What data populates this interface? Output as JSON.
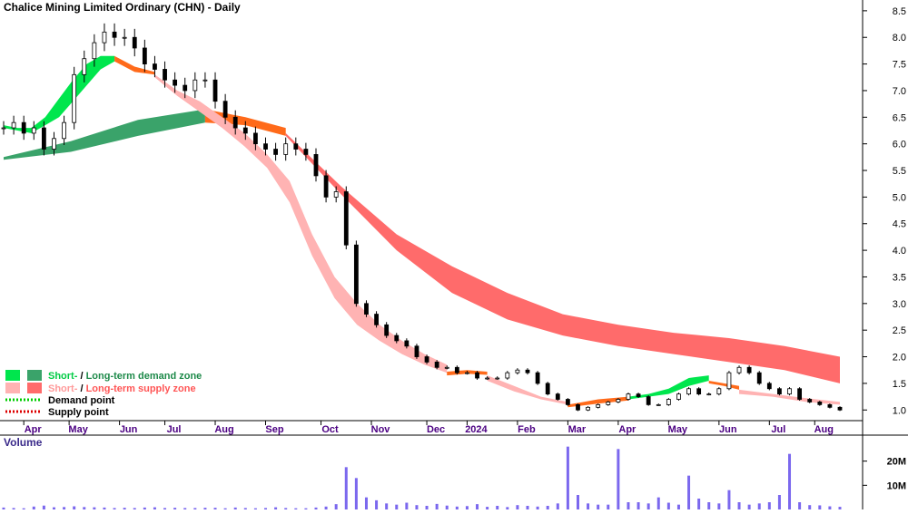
{
  "chart_data": {
    "type": "candlestick",
    "title": "Chalice Mining Limited Ordinary (CHN) - Daily",
    "price_axis": {
      "ticks": [
        "8.5",
        "8.0",
        "7.5",
        "7.0",
        "6.5",
        "6.0",
        "5.5",
        "5.0",
        "4.5",
        "4.0",
        "3.5",
        "3.0",
        "2.5",
        "2.0",
        "1.5",
        "1.0"
      ],
      "range": [
        0.8,
        8.6
      ]
    },
    "volume_axis": {
      "title": "Volume",
      "ticks": [
        "20M",
        "10M"
      ],
      "range": [
        0,
        30000000
      ]
    },
    "month_labels": [
      "Apr",
      "May",
      "Jun",
      "Jul",
      "Aug",
      "Sep",
      "Oct",
      "Nov",
      "Dec",
      "2024",
      "Feb",
      "Mar",
      "Apr",
      "May",
      "Jun",
      "Jul",
      "Aug"
    ],
    "month_index": [
      2,
      6.5,
      11.5,
      16,
      21,
      26,
      31.5,
      36.5,
      42,
      46,
      51,
      56,
      61,
      66,
      71,
      76,
      80.5
    ],
    "legend": {
      "items": [
        {
          "a": "Short-",
          "sep": " / ",
          "b": "Long-term demand zone",
          "colorA": "#00e64d",
          "colorB": "#3aa36a",
          "textColorA": "#00cc44",
          "textColorB": "#1e8a4a"
        },
        {
          "a": "Short-",
          "sep": " / ",
          "b": "Long-term supply zone",
          "colorA": "#ffb3b3",
          "colorB": "#ff6b6b",
          "textColorA": "#ff9a9a",
          "textColorB": "#ff5555"
        },
        {
          "label": "Demand point",
          "color": "#00cc00"
        },
        {
          "label": "Supply point",
          "color": "#dd0000"
        }
      ]
    },
    "colors": {
      "demand_short": "#00e64d",
      "demand_long": "#3aa36a",
      "supply_short": "#ffb3b3",
      "supply_long": "#ff6b6b",
      "transition": "#ff6a1a",
      "candle": "#000000",
      "volume": "#7b68ee",
      "month_label": "#4b0082",
      "volume_label": "#3a2a8a"
    },
    "series": {
      "close": [
        6.3,
        6.4,
        6.2,
        6.3,
        5.9,
        6.1,
        6.4,
        7.3,
        7.6,
        7.9,
        8.1,
        8.0,
        8.0,
        7.8,
        7.5,
        7.4,
        7.2,
        7.1,
        7.0,
        7.2,
        7.2,
        6.8,
        6.5,
        6.3,
        6.2,
        6.0,
        5.9,
        5.8,
        6.0,
        5.9,
        5.8,
        5.4,
        5.0,
        5.1,
        4.1,
        3.0,
        2.8,
        2.6,
        2.4,
        2.3,
        2.2,
        2.0,
        1.9,
        1.8,
        1.8,
        1.7,
        1.7,
        1.6,
        1.6,
        1.6,
        1.7,
        1.75,
        1.7,
        1.5,
        1.3,
        1.2,
        1.1,
        1.0,
        1.05,
        1.1,
        1.15,
        1.2,
        1.3,
        1.25,
        1.1,
        1.1,
        1.2,
        1.3,
        1.4,
        1.3,
        1.3,
        1.4,
        1.7,
        1.8,
        1.7,
        1.5,
        1.4,
        1.3,
        1.4,
        1.2,
        1.15,
        1.1,
        1.05,
        1.0
      ],
      "short_demand": [
        [
          6.35,
          6.3
        ],
        [
          6.3,
          6.25
        ],
        [
          6.3,
          6.2
        ],
        [
          6.5,
          6.35
        ],
        [
          6.85,
          6.5
        ],
        [
          7.2,
          6.8
        ],
        [
          7.5,
          7.1
        ],
        [
          7.65,
          7.4
        ],
        [
          7.65,
          7.55
        ]
      ],
      "short_trans_1": [
        [
          7.65,
          7.55
        ],
        [
          7.45,
          7.35
        ],
        [
          7.35,
          7.3
        ]
      ],
      "short_supply_1": [
        [
          7.3,
          7.25
        ],
        [
          7.0,
          6.9
        ],
        [
          6.8,
          6.6
        ],
        [
          6.5,
          6.3
        ],
        [
          6.2,
          5.95
        ],
        [
          5.8,
          5.55
        ],
        [
          5.3,
          4.9
        ],
        [
          4.3,
          3.9
        ],
        [
          3.5,
          3.1
        ],
        [
          3.0,
          2.6
        ],
        [
          2.6,
          2.3
        ],
        [
          2.3,
          2.05
        ],
        [
          2.05,
          1.85
        ],
        [
          1.85,
          1.7
        ]
      ],
      "short_trans_2": [
        [
          1.72,
          1.65
        ],
        [
          1.75,
          1.68
        ],
        [
          1.72,
          1.66
        ]
      ],
      "short_supply_2": [
        [
          1.65,
          1.55
        ],
        [
          1.45,
          1.35
        ],
        [
          1.25,
          1.2
        ],
        [
          1.15,
          1.1
        ]
      ],
      "short_trans_3": [
        [
          1.1,
          1.05
        ],
        [
          1.2,
          1.12
        ],
        [
          1.25,
          1.18
        ]
      ],
      "short_demand_2": [
        [
          1.25,
          1.2
        ],
        [
          1.3,
          1.25
        ],
        [
          1.4,
          1.3
        ],
        [
          1.6,
          1.45
        ],
        [
          1.65,
          1.55
        ]
      ],
      "short_trans_4": [
        [
          1.55,
          1.5
        ],
        [
          1.5,
          1.45
        ],
        [
          1.45,
          1.38
        ]
      ],
      "short_supply_3": [
        [
          1.38,
          1.3
        ],
        [
          1.3,
          1.25
        ],
        [
          1.22,
          1.15
        ],
        [
          1.15,
          1.1
        ]
      ],
      "long_demand": [
        [
          5.75,
          5.7
        ],
        [
          6.05,
          5.85
        ],
        [
          6.45,
          6.15
        ],
        [
          6.65,
          6.4
        ]
      ],
      "long_trans": [
        [
          6.65,
          6.4
        ],
        [
          6.5,
          6.35
        ],
        [
          6.3,
          6.15
        ]
      ],
      "long_supply": [
        [
          6.2,
          6.15
        ],
        [
          5.2,
          5.05
        ],
        [
          4.3,
          4.0
        ],
        [
          3.7,
          3.2
        ],
        [
          3.2,
          2.7
        ],
        [
          2.8,
          2.4
        ],
        [
          2.6,
          2.2
        ],
        [
          2.45,
          2.05
        ],
        [
          2.35,
          1.9
        ],
        [
          2.2,
          1.75
        ],
        [
          2.0,
          1.5
        ]
      ],
      "volume": [
        0.8,
        0.6,
        0.5,
        1.2,
        1.6,
        0.9,
        1.0,
        1.3,
        1.0,
        0.9,
        0.8,
        0.6,
        0.7,
        0.6,
        0.8,
        0.9,
        0.6,
        0.7,
        0.6,
        0.6,
        0.7,
        0.7,
        0.5,
        0.8,
        0.6,
        0.5,
        0.6,
        0.9,
        0.6,
        0.5,
        0.5,
        0.8,
        1.2,
        2.2,
        17.5,
        13.0,
        5.0,
        3.8,
        2.5,
        2.0,
        2.8,
        1.8,
        1.5,
        2.3,
        1.6,
        1.2,
        1.4,
        2.2,
        1.1,
        1.5,
        1.0,
        1.8,
        1.5,
        1.2,
        1.5,
        2.5,
        26.0,
        6.0,
        2.5,
        2.0,
        2.0,
        25.0,
        3.0,
        3.0,
        2.5,
        5.0,
        2.8,
        2.0,
        14.0,
        4.5,
        3.0,
        2.5,
        8.0,
        3.0,
        2.0,
        2.5,
        3.0,
        6.0,
        23.0,
        3.0,
        1.8,
        1.7,
        1.3,
        1.1
      ]
    }
  }
}
